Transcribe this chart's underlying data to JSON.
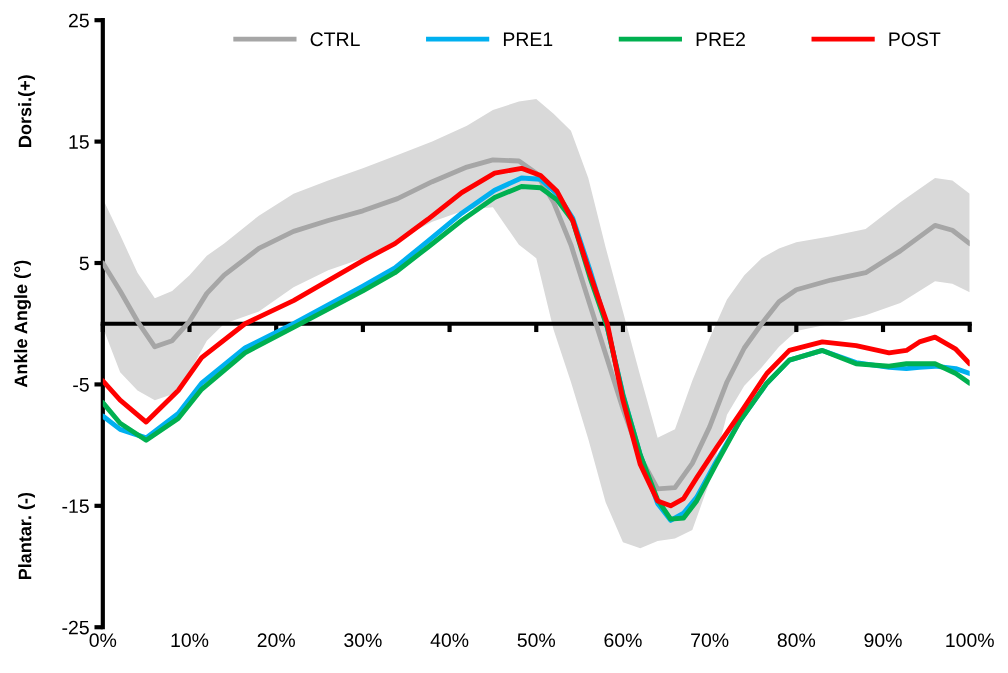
{
  "chart_data": {
    "type": "line",
    "ylabel": "Ankle Angle (°)",
    "annotations": [
      "Dorsi.(+)",
      "Plantar. (-)"
    ],
    "xlim": [
      0,
      100
    ],
    "xticks": [
      {
        "value": 0,
        "label": "0%"
      },
      {
        "value": 10,
        "label": "10%"
      },
      {
        "value": 20,
        "label": "20%"
      },
      {
        "value": 30,
        "label": "30%"
      },
      {
        "value": 40,
        "label": "40%"
      },
      {
        "value": 50,
        "label": "50%"
      },
      {
        "value": 60,
        "label": "60%"
      },
      {
        "value": 70,
        "label": "70%"
      },
      {
        "value": 80,
        "label": "80%"
      },
      {
        "value": 90,
        "label": "90%"
      },
      {
        "value": 100,
        "label": "100%"
      }
    ],
    "ylim": [
      -25,
      25
    ],
    "yticks": [
      -25,
      -15,
      -5,
      5,
      15,
      25
    ],
    "grid": false,
    "legend": "top",
    "marker": "none",
    "line_style": "solid",
    "series": [
      {
        "name": "CTRL",
        "color": "#a6a6a6",
        "x": [
          0,
          2,
          4,
          6,
          8,
          10,
          12,
          14,
          18,
          22,
          26,
          30,
          34,
          38,
          42,
          45,
          48,
          50,
          52,
          54,
          56,
          58,
          60,
          62,
          64,
          66,
          68,
          70,
          72,
          74,
          76,
          78,
          80,
          84,
          88,
          92,
          96,
          98,
          100
        ],
        "values": [
          5.0,
          2.7,
          0.2,
          -1.9,
          -1.4,
          0.2,
          2.5,
          4.0,
          6.2,
          7.6,
          8.5,
          9.3,
          10.3,
          11.7,
          12.9,
          13.5,
          13.4,
          12.4,
          10.0,
          6.5,
          2.0,
          -2.5,
          -7.0,
          -11.0,
          -13.6,
          -13.5,
          -11.5,
          -8.5,
          -4.8,
          -2.0,
          0.0,
          1.8,
          2.8,
          3.6,
          4.2,
          6.0,
          8.1,
          7.7,
          6.6
        ],
        "upper": [
          10.3,
          7.3,
          4.2,
          2.1,
          2.7,
          4.0,
          5.6,
          6.6,
          8.9,
          10.7,
          11.8,
          12.8,
          13.9,
          15.0,
          16.3,
          17.6,
          18.3,
          18.5,
          17.3,
          15.9,
          12.0,
          6.3,
          1.0,
          -4.3,
          -9.4,
          -8.7,
          -4.7,
          -1.2,
          2.0,
          4.0,
          5.4,
          6.2,
          6.7,
          7.2,
          7.8,
          10.0,
          12.0,
          11.8,
          10.7
        ],
        "lower": [
          -0.3,
          -4.0,
          -5.5,
          -6.3,
          -5.8,
          -4.0,
          -1.4,
          0.0,
          1.0,
          3.0,
          4.4,
          5.4,
          6.9,
          8.4,
          9.4,
          9.6,
          6.5,
          5.4,
          -0.5,
          -4.8,
          -9.5,
          -14.7,
          -18.0,
          -18.5,
          -17.9,
          -17.7,
          -17.0,
          -13.0,
          -7.5,
          -5.1,
          -3.6,
          -1.9,
          -0.6,
          0.0,
          0.7,
          1.7,
          3.5,
          3.3,
          2.6
        ]
      },
      {
        "name": "PRE1",
        "color": "#00b0f0",
        "x": [
          0,
          2,
          5,
          8.7,
          11.4,
          16.4,
          22,
          30,
          33.7,
          37.5,
          41.4,
          45.2,
          48.3,
          50.5,
          52.4,
          54.2,
          56.2,
          58.2,
          60,
          62,
          64,
          65.5,
          67,
          68.5,
          70.8,
          73.5,
          76.6,
          79.2,
          83,
          86.9,
          90.7,
          92.7,
          94.2,
          96,
          98.4,
          100
        ],
        "values": [
          -7.6,
          -8.7,
          -9.4,
          -7.4,
          -4.9,
          -2.0,
          0.0,
          3.1,
          4.6,
          6.8,
          9.1,
          11.0,
          12.0,
          11.9,
          10.7,
          8.7,
          4.4,
          -0.3,
          -5.8,
          -10.8,
          -14.8,
          -16.2,
          -15.6,
          -14.3,
          -11.3,
          -8.0,
          -4.9,
          -3.0,
          -2.2,
          -3.2,
          -3.6,
          -3.7,
          -3.6,
          -3.5,
          -3.7,
          -4.1
        ]
      },
      {
        "name": "PRE2",
        "color": "#00b050",
        "x": [
          0,
          2,
          5,
          8.7,
          11.4,
          16.4,
          22,
          30,
          33.7,
          37.5,
          41.4,
          45.2,
          48.3,
          50.5,
          52.4,
          54.2,
          56.2,
          58.2,
          60,
          62,
          64,
          65.5,
          67,
          68.5,
          70.8,
          73.5,
          76.6,
          79.2,
          83,
          86.9,
          90.7,
          92.7,
          94.2,
          96,
          98.4,
          100
        ],
        "values": [
          -6.5,
          -8.2,
          -9.6,
          -7.8,
          -5.4,
          -2.4,
          -0.3,
          2.7,
          4.2,
          6.3,
          8.5,
          10.4,
          11.3,
          11.2,
          10.2,
          8.5,
          3.8,
          -0.3,
          -5.9,
          -10.8,
          -14.5,
          -16.1,
          -16.0,
          -14.6,
          -11.5,
          -8.0,
          -4.9,
          -3.0,
          -2.2,
          -3.3,
          -3.5,
          -3.3,
          -3.3,
          -3.3,
          -4.1,
          -4.9
        ]
      },
      {
        "name": "POST",
        "color": "#ff0000",
        "x": [
          0,
          2,
          5,
          8.7,
          11.4,
          16.4,
          22,
          30,
          33.7,
          37.5,
          41.4,
          45.2,
          48.3,
          50.5,
          52.4,
          54.2,
          56.2,
          58.2,
          60,
          62,
          64,
          65.5,
          67,
          68.5,
          70.8,
          73.5,
          76.6,
          79.2,
          83,
          86.9,
          90.7,
          92.7,
          94.2,
          96,
          98.4,
          100
        ],
        "values": [
          -4.7,
          -6.3,
          -8.1,
          -5.5,
          -2.8,
          0.0,
          1.9,
          5.2,
          6.6,
          8.6,
          10.8,
          12.4,
          12.8,
          12.2,
          10.9,
          8.5,
          4.1,
          0.0,
          -6.3,
          -11.6,
          -14.6,
          -15.0,
          -14.4,
          -12.7,
          -10.2,
          -7.4,
          -4.1,
          -2.2,
          -1.5,
          -1.8,
          -2.4,
          -2.2,
          -1.5,
          -1.1,
          -2.1,
          -3.3
        ]
      }
    ]
  }
}
